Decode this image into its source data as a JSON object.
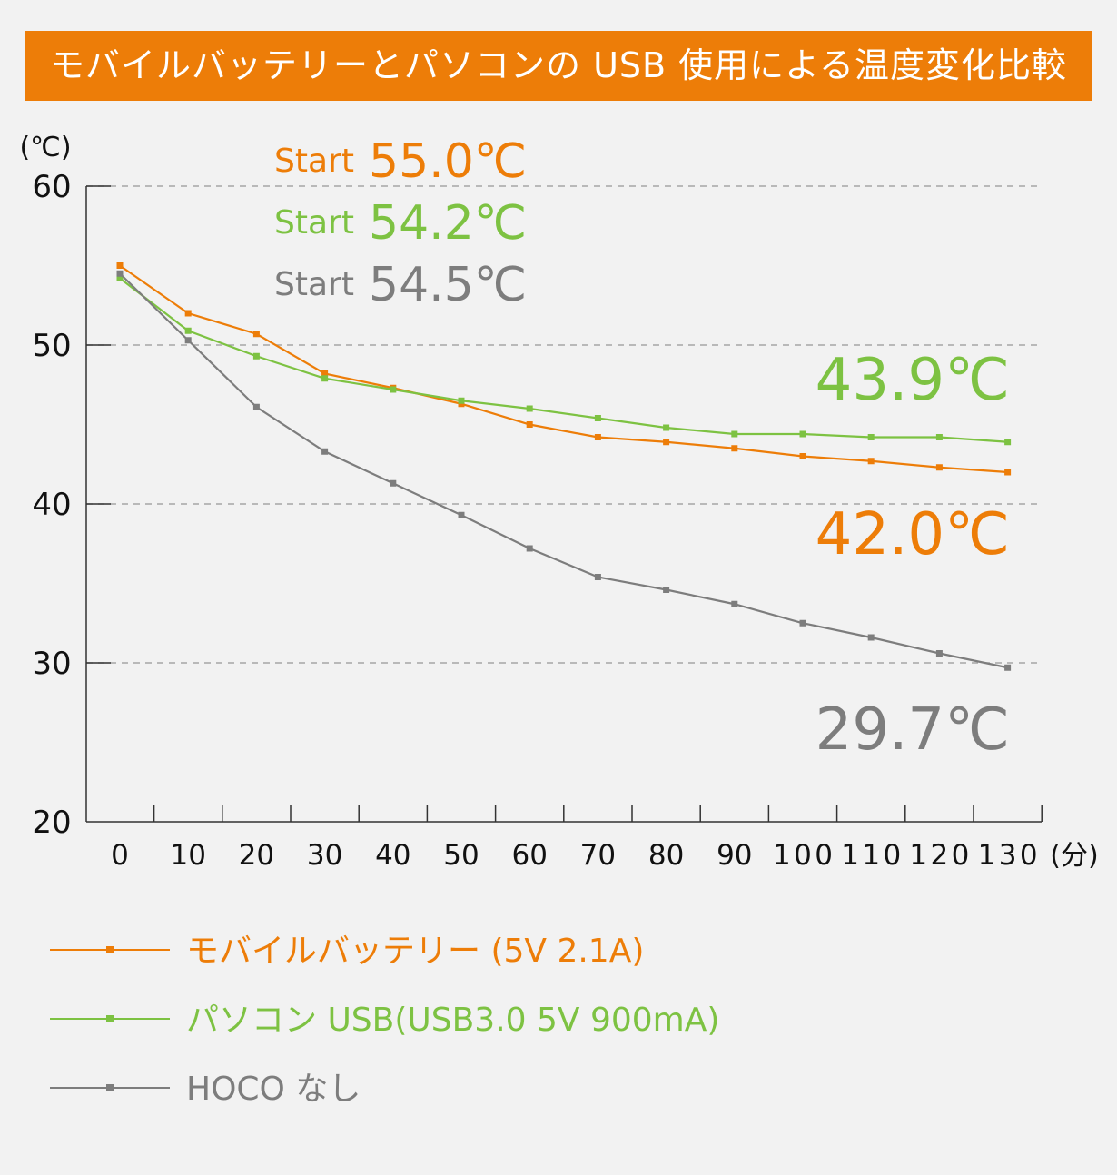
{
  "banner": {
    "title": "モバイルバッテリーとパソコンの USB 使用による温度変化比較"
  },
  "colors": {
    "mobile": "#ed7d08",
    "pc": "#7dc242",
    "none": "#7d7d7d",
    "banner": "#ed7d08"
  },
  "chart_data": {
    "type": "line",
    "title": "モバイルバッテリーとパソコンの USB 使用による温度変化比較",
    "ylabel": "(℃)",
    "xlabel": "(分)",
    "x": [
      0,
      10,
      20,
      30,
      40,
      50,
      60,
      70,
      80,
      90,
      100,
      110,
      120,
      130
    ],
    "x_tick_labels": [
      "0",
      "10",
      "20",
      "30",
      "40",
      "50",
      "60",
      "70",
      "80",
      "90",
      "100",
      "110",
      "120",
      "130"
    ],
    "y_tick_labels": [
      "20",
      "30",
      "40",
      "50",
      "60"
    ],
    "ylim": [
      20,
      60
    ],
    "y_ticks": [
      20,
      30,
      40,
      50,
      60
    ],
    "grid": true,
    "series": [
      {
        "name": "モバイルバッテリー (5V 2.1A)",
        "color": "#ed7d08",
        "values": [
          55.0,
          52.0,
          50.7,
          48.2,
          47.3,
          46.3,
          45.0,
          44.2,
          43.9,
          43.5,
          43.0,
          42.7,
          42.3,
          42.0
        ]
      },
      {
        "name": "パソコン USB(USB3.0 5V 900mA)",
        "color": "#7dc242",
        "values": [
          54.2,
          50.9,
          49.3,
          47.9,
          47.2,
          46.5,
          46.0,
          45.4,
          44.8,
          44.4,
          44.4,
          44.2,
          44.2,
          43.9
        ]
      },
      {
        "name": "HOCO なし",
        "color": "#7d7d7d",
        "values": [
          54.5,
          50.3,
          46.1,
          43.3,
          41.3,
          39.3,
          37.2,
          35.4,
          34.6,
          33.7,
          32.5,
          31.6,
          30.6,
          29.7
        ]
      }
    ],
    "start_annotations": [
      {
        "label": "Start",
        "value": "55.0℃",
        "color": "#ed7d08"
      },
      {
        "label": "Start",
        "value": "54.2℃",
        "color": "#7dc242"
      },
      {
        "label": "Start",
        "value": "54.5℃",
        "color": "#7d7d7d"
      }
    ],
    "end_annotations": [
      {
        "value": "43.9℃",
        "color": "#7dc242"
      },
      {
        "value": "42.0℃",
        "color": "#ed7d08"
      },
      {
        "value": "29.7℃",
        "color": "#7d7d7d"
      }
    ],
    "legend": {
      "placement": "bottom",
      "items": [
        {
          "label": "モバイルバッテリー (5V 2.1A)",
          "color": "#ed7d08"
        },
        {
          "label": "パソコン USB(USB3.0 5V 900mA)",
          "color": "#7dc242"
        },
        {
          "label": "HOCO なし",
          "color": "#7d7d7d"
        }
      ]
    }
  }
}
